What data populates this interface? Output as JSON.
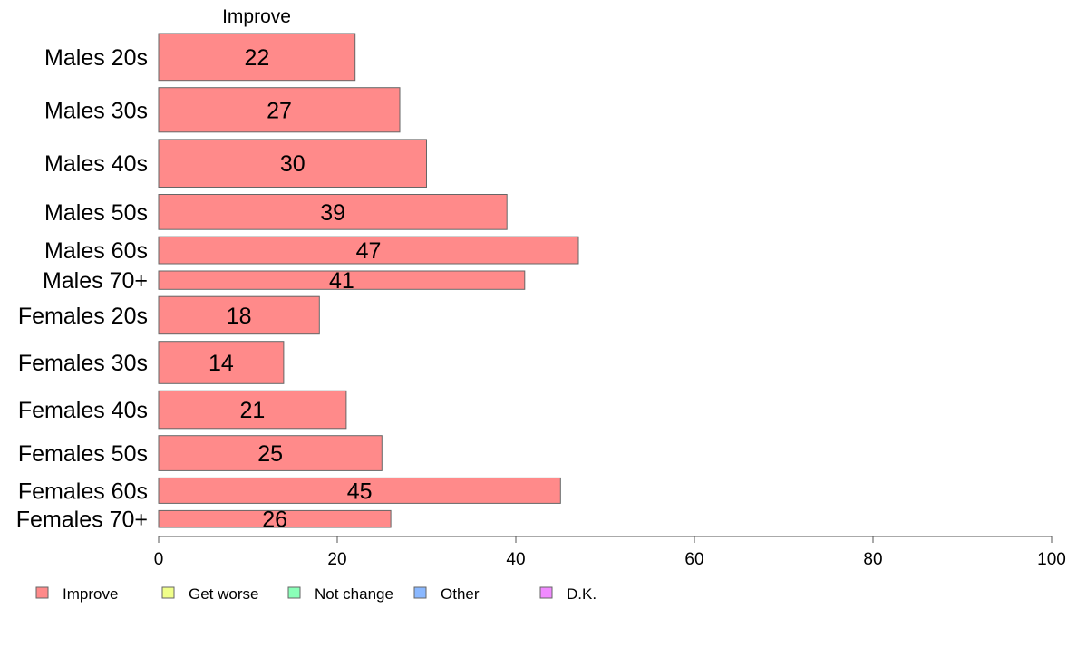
{
  "chart_data": {
    "type": "bar",
    "orientation": "horizontal",
    "stacked": true,
    "series_title": "Improve",
    "categories": [
      "Males 20s",
      "Males 30s",
      "Males 40s",
      "Males 50s",
      "Males 60s",
      "Males 70+",
      "Females 20s",
      "Females 30s",
      "Females 40s",
      "Females 50s",
      "Females 60s",
      "Females 70+"
    ],
    "relative_widths": [
      0.222,
      0.211,
      0.226,
      0.166,
      0.128,
      0.087,
      0.178,
      0.2,
      0.178,
      0.166,
      0.12,
      0.08
    ],
    "series": [
      {
        "name": "Improve",
        "color": "#ff8a8a",
        "values": [
          22,
          27,
          30,
          39,
          47,
          41,
          18,
          14,
          21,
          25,
          45,
          26
        ],
        "labels": [
          "22",
          "27",
          "30",
          "39",
          "47",
          "41",
          "18",
          "14",
          "21",
          "25",
          "45",
          "26"
        ]
      }
    ],
    "xlim": [
      0,
      100
    ],
    "xticks": [
      0,
      20,
      40,
      60,
      80,
      100
    ],
    "xtick_labels": [
      "0",
      "20",
      "40",
      "60",
      "80",
      "100"
    ],
    "grid": false,
    "legend": {
      "position": "bottom-left",
      "entries": [
        {
          "label": "Improve",
          "color": "#ff8a8a"
        },
        {
          "label": "Get worse",
          "color": "#f0ff8a"
        },
        {
          "label": "Not change",
          "color": "#8affb8"
        },
        {
          "label": "Other",
          "color": "#8ab8ff"
        },
        {
          "label": "D.K.",
          "color": "#f08aff"
        }
      ]
    }
  }
}
